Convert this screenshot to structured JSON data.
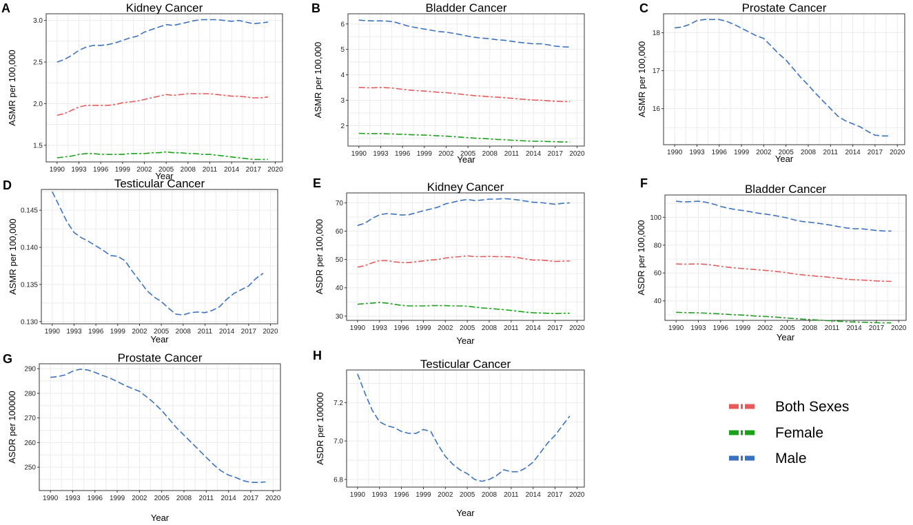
{
  "chart_data": [
    {
      "panel": "A",
      "type": "line",
      "title": "Kidney Cancer",
      "xlabel": "Year",
      "ylabel": "ASMR per 100,000",
      "xlim": [
        1988.5,
        2021
      ],
      "ylim": [
        1.3,
        3.08
      ],
      "yticks": [
        1.5,
        2.0,
        2.5,
        3.0
      ],
      "ytick_labels": [
        "1.5",
        "2.0",
        "2.5",
        "3.0"
      ],
      "xticks": [
        1990,
        1993,
        1996,
        1999,
        2002,
        2005,
        2008,
        2011,
        2014,
        2017,
        2020
      ],
      "x": [
        1990,
        1991,
        1992,
        1993,
        1994,
        1995,
        1996,
        1997,
        1998,
        1999,
        2000,
        2001,
        2002,
        2003,
        2004,
        2005,
        2006,
        2007,
        2008,
        2009,
        2010,
        2011,
        2012,
        2013,
        2014,
        2015,
        2016,
        2017,
        2018,
        2019
      ],
      "series": [
        {
          "name": "Male",
          "values": [
            2.5,
            2.53,
            2.58,
            2.64,
            2.68,
            2.7,
            2.7,
            2.71,
            2.73,
            2.76,
            2.79,
            2.81,
            2.86,
            2.89,
            2.92,
            2.95,
            2.94,
            2.96,
            2.98,
            3.0,
            3.01,
            3.01,
            3.01,
            3.0,
            2.99,
            3.0,
            2.98,
            2.96,
            2.97,
            2.98
          ]
        },
        {
          "name": "Both Sexes",
          "values": [
            1.86,
            1.88,
            1.92,
            1.96,
            1.98,
            1.98,
            1.98,
            1.98,
            1.99,
            2.01,
            2.02,
            2.03,
            2.05,
            2.07,
            2.09,
            2.11,
            2.1,
            2.11,
            2.12,
            2.12,
            2.12,
            2.12,
            2.11,
            2.1,
            2.09,
            2.09,
            2.08,
            2.07,
            2.07,
            2.08
          ]
        },
        {
          "name": "Female",
          "values": [
            1.35,
            1.36,
            1.37,
            1.39,
            1.4,
            1.4,
            1.39,
            1.39,
            1.39,
            1.39,
            1.4,
            1.4,
            1.4,
            1.41,
            1.41,
            1.42,
            1.41,
            1.41,
            1.4,
            1.4,
            1.39,
            1.39,
            1.38,
            1.37,
            1.36,
            1.35,
            1.34,
            1.33,
            1.33,
            1.33
          ]
        }
      ]
    },
    {
      "panel": "B",
      "type": "line",
      "title": "Bladder Cancer",
      "xlabel": "Year",
      "ylabel": "ASMR per 100,000",
      "xlim": [
        1988.5,
        2021
      ],
      "ylim": [
        1.2,
        6.4
      ],
      "yticks": [
        2,
        3,
        4,
        5,
        6
      ],
      "ytick_labels": [
        "2",
        "3",
        "4",
        "5",
        "6"
      ],
      "xticks": [
        1990,
        1993,
        1996,
        1999,
        2002,
        2005,
        2008,
        2011,
        2014,
        2017,
        2020
      ],
      "x": [
        1990,
        1991,
        1992,
        1993,
        1994,
        1995,
        1996,
        1997,
        1998,
        1999,
        2000,
        2001,
        2002,
        2003,
        2004,
        2005,
        2006,
        2007,
        2008,
        2009,
        2010,
        2011,
        2012,
        2013,
        2014,
        2015,
        2016,
        2017,
        2018,
        2019
      ],
      "series": [
        {
          "name": "Male",
          "values": [
            6.15,
            6.13,
            6.12,
            6.12,
            6.11,
            6.07,
            5.98,
            5.9,
            5.85,
            5.8,
            5.75,
            5.7,
            5.68,
            5.63,
            5.58,
            5.52,
            5.47,
            5.44,
            5.42,
            5.38,
            5.36,
            5.32,
            5.28,
            5.25,
            5.22,
            5.22,
            5.18,
            5.13,
            5.1,
            5.09
          ]
        },
        {
          "name": "Both Sexes",
          "values": [
            3.5,
            3.49,
            3.49,
            3.5,
            3.49,
            3.47,
            3.43,
            3.4,
            3.38,
            3.36,
            3.34,
            3.31,
            3.3,
            3.27,
            3.24,
            3.21,
            3.18,
            3.16,
            3.14,
            3.12,
            3.1,
            3.08,
            3.05,
            3.03,
            3.01,
            3.0,
            2.98,
            2.96,
            2.95,
            2.95
          ]
        },
        {
          "name": "Female",
          "values": [
            1.7,
            1.69,
            1.69,
            1.69,
            1.68,
            1.67,
            1.66,
            1.65,
            1.64,
            1.63,
            1.62,
            1.6,
            1.59,
            1.57,
            1.55,
            1.53,
            1.51,
            1.5,
            1.48,
            1.46,
            1.45,
            1.43,
            1.42,
            1.4,
            1.39,
            1.39,
            1.38,
            1.37,
            1.36,
            1.36
          ]
        }
      ]
    },
    {
      "panel": "C",
      "type": "line",
      "title": "Prostate Cancer",
      "xlabel": "Year",
      "ylabel": "ASMR per 100,000",
      "xlim": [
        1988.5,
        2021
      ],
      "ylim": [
        15.05,
        18.5
      ],
      "yticks": [
        16,
        17,
        18
      ],
      "ytick_labels": [
        "16",
        "17",
        "18"
      ],
      "xticks": [
        1990,
        1993,
        1996,
        1999,
        2002,
        2005,
        2008,
        2011,
        2014,
        2017,
        2020
      ],
      "x": [
        1990,
        1991,
        1992,
        1993,
        1994,
        1995,
        1996,
        1997,
        1998,
        1999,
        2000,
        2001,
        2002,
        2003,
        2004,
        2005,
        2006,
        2007,
        2008,
        2009,
        2010,
        2011,
        2012,
        2013,
        2014,
        2015,
        2016,
        2017,
        2018,
        2019
      ],
      "series": [
        {
          "name": "Male",
          "values": [
            18.13,
            18.15,
            18.22,
            18.32,
            18.35,
            18.35,
            18.35,
            18.3,
            18.22,
            18.12,
            18.02,
            17.92,
            17.85,
            17.65,
            17.45,
            17.28,
            17.05,
            16.82,
            16.62,
            16.4,
            16.2,
            16.0,
            15.8,
            15.68,
            15.6,
            15.52,
            15.4,
            15.3,
            15.28,
            15.28
          ]
        }
      ]
    },
    {
      "panel": "D",
      "type": "line",
      "title": "Testicular Cancer",
      "xlabel": "Year",
      "ylabel": "ASMR per 100,000",
      "xlim": [
        1988.5,
        2021
      ],
      "ylim": [
        0.1297,
        0.1478
      ],
      "yticks": [
        0.13,
        0.135,
        0.14,
        0.145
      ],
      "ytick_labels": [
        "0.130",
        "0.135",
        "0.140",
        "0.145"
      ],
      "xticks": [
        1990,
        1993,
        1996,
        1999,
        2002,
        2005,
        2008,
        2011,
        2014,
        2017,
        2020
      ],
      "x": [
        1990,
        1991,
        1992,
        1993,
        1994,
        1995,
        1996,
        1997,
        1998,
        1999,
        2000,
        2001,
        2002,
        2003,
        2004,
        2005,
        2006,
        2007,
        2008,
        2009,
        2010,
        2011,
        2012,
        2013,
        2014,
        2015,
        2016,
        2017,
        2018,
        2019
      ],
      "series": [
        {
          "name": "Male",
          "values": [
            0.1475,
            0.1455,
            0.1435,
            0.142,
            0.1413,
            0.1408,
            0.1402,
            0.1396,
            0.1389,
            0.1388,
            0.1382,
            0.1368,
            0.1355,
            0.1342,
            0.1333,
            0.1327,
            0.1318,
            0.131,
            0.1309,
            0.1312,
            0.1313,
            0.1312,
            0.1315,
            0.132,
            0.133,
            0.1338,
            0.1343,
            0.1348,
            0.1358,
            0.1365
          ]
        }
      ]
    },
    {
      "panel": "E",
      "type": "line",
      "title": "Kidney Cancer",
      "xlabel": "Year",
      "ylabel": "ASDR per 100,000",
      "xlim": [
        1988.5,
        2021
      ],
      "ylim": [
        28.5,
        73.5
      ],
      "yticks": [
        30,
        40,
        50,
        60,
        70
      ],
      "ytick_labels": [
        "30",
        "40",
        "50",
        "60",
        "70"
      ],
      "xticks": [
        1990,
        1993,
        1996,
        1999,
        2002,
        2005,
        2008,
        2011,
        2014,
        2017,
        2020
      ],
      "x": [
        1990,
        1991,
        1992,
        1993,
        1994,
        1995,
        1996,
        1997,
        1998,
        1999,
        2000,
        2001,
        2002,
        2003,
        2004,
        2005,
        2006,
        2007,
        2008,
        2009,
        2010,
        2011,
        2012,
        2013,
        2014,
        2015,
        2016,
        2017,
        2018,
        2019
      ],
      "series": [
        {
          "name": "Male",
          "values": [
            62.0,
            62.8,
            64.5,
            65.8,
            66.2,
            66.0,
            65.7,
            65.8,
            66.5,
            67.2,
            67.8,
            68.5,
            69.6,
            70.2,
            70.8,
            71.2,
            70.8,
            71.0,
            71.3,
            71.3,
            71.5,
            71.3,
            71.0,
            70.6,
            70.2,
            70.1,
            69.8,
            69.5,
            69.8,
            70.0
          ]
        },
        {
          "name": "Both Sexes",
          "values": [
            47.3,
            47.8,
            48.8,
            49.6,
            49.6,
            49.2,
            48.9,
            48.9,
            49.2,
            49.5,
            49.8,
            50.0,
            50.5,
            50.8,
            51.0,
            51.3,
            51.0,
            51.0,
            51.1,
            51.0,
            51.0,
            50.9,
            50.6,
            50.2,
            49.8,
            49.8,
            49.6,
            49.3,
            49.4,
            49.5
          ]
        },
        {
          "name": "Female",
          "values": [
            34.2,
            34.4,
            34.6,
            34.8,
            34.6,
            34.2,
            33.8,
            33.6,
            33.6,
            33.6,
            33.7,
            33.7,
            33.7,
            33.6,
            33.6,
            33.5,
            33.2,
            32.9,
            32.7,
            32.5,
            32.3,
            32.0,
            31.7,
            31.4,
            31.2,
            31.1,
            31.0,
            30.9,
            31.0,
            31.0
          ]
        }
      ]
    },
    {
      "panel": "F",
      "type": "line",
      "title": "Bladder Cancer",
      "xlabel": "Year",
      "ylabel": "ASDR per 100,000",
      "xlim": [
        1988.5,
        2021
      ],
      "ylim": [
        26,
        116
      ],
      "yticks": [
        40,
        60,
        80,
        100
      ],
      "ytick_labels": [
        "40",
        "60",
        "80",
        "100"
      ],
      "xticks": [
        1990,
        1993,
        1996,
        1999,
        2002,
        2005,
        2008,
        2011,
        2014,
        2017,
        2020
      ],
      "x": [
        1990,
        1991,
        1992,
        1993,
        1994,
        1995,
        1996,
        1997,
        1998,
        1999,
        2000,
        2001,
        2002,
        2003,
        2004,
        2005,
        2006,
        2007,
        2008,
        2009,
        2010,
        2011,
        2012,
        2013,
        2014,
        2015,
        2016,
        2017,
        2018,
        2019
      ],
      "series": [
        {
          "name": "Male",
          "values": [
            111.5,
            111.0,
            111.2,
            111.5,
            110.8,
            109.5,
            107.8,
            106.5,
            105.5,
            104.8,
            104.0,
            103.0,
            102.3,
            101.5,
            100.5,
            99.5,
            98.0,
            97.0,
            96.4,
            95.8,
            95.0,
            94.2,
            93.2,
            92.3,
            91.8,
            91.7,
            91.2,
            90.5,
            90.2,
            90.1
          ]
        },
        {
          "name": "Both Sexes",
          "values": [
            66.5,
            66.3,
            66.4,
            66.5,
            66.2,
            65.6,
            64.8,
            64.2,
            63.6,
            63.2,
            62.8,
            62.3,
            61.9,
            61.4,
            60.8,
            60.1,
            59.3,
            58.7,
            58.2,
            57.7,
            57.3,
            56.7,
            56.1,
            55.5,
            55.2,
            55.0,
            54.7,
            54.3,
            54.1,
            54.0
          ]
        },
        {
          "name": "Female",
          "values": [
            31.8,
            31.6,
            31.5,
            31.4,
            31.2,
            30.9,
            30.6,
            30.3,
            30.0,
            29.8,
            29.4,
            29.0,
            28.8,
            28.5,
            28.1,
            27.7,
            27.3,
            26.9,
            26.6,
            26.3,
            26.0,
            25.7,
            25.3,
            25.0,
            24.8,
            24.7,
            24.5,
            24.3,
            24.2,
            24.2
          ]
        }
      ]
    },
    {
      "panel": "G",
      "type": "line",
      "title": "Prostate Cancer",
      "xlabel": "Year",
      "ylabel": "ASDR per 100000",
      "xlim": [
        1988.5,
        2021
      ],
      "ylim": [
        240.5,
        292
      ],
      "yticks": [
        250,
        260,
        270,
        280,
        290
      ],
      "ytick_labels": [
        "250",
        "260",
        "270",
        "280",
        "290"
      ],
      "xticks": [
        1990,
        1993,
        1996,
        1999,
        2002,
        2005,
        2008,
        2011,
        2014,
        2017,
        2020
      ],
      "x": [
        1990,
        1991,
        1992,
        1993,
        1994,
        1995,
        1996,
        1997,
        1998,
        1999,
        2000,
        2001,
        2002,
        2003,
        2004,
        2005,
        2006,
        2007,
        2008,
        2009,
        2010,
        2011,
        2012,
        2013,
        2014,
        2015,
        2016,
        2017,
        2018,
        2019
      ],
      "series": [
        {
          "name": "Male",
          "values": [
            286.5,
            286.8,
            287.5,
            289.0,
            289.8,
            289.5,
            288.5,
            287.3,
            286.2,
            284.8,
            283.3,
            282.0,
            280.8,
            278.5,
            276.0,
            273.0,
            269.5,
            266.0,
            263.0,
            260.0,
            257.0,
            254.0,
            251.0,
            248.5,
            246.8,
            245.8,
            244.5,
            243.8,
            243.8,
            244.0
          ]
        }
      ]
    },
    {
      "panel": "H",
      "type": "line",
      "title": "Testicular Cancer",
      "xlabel": "Year",
      "ylabel": "ASDR per 100000",
      "xlim": [
        1988.5,
        2021
      ],
      "ylim": [
        6.76,
        7.37
      ],
      "yticks": [
        6.8,
        7.0,
        7.2
      ],
      "ytick_labels": [
        "6.8",
        "7.0",
        "7.2"
      ],
      "xticks": [
        1990,
        1993,
        1996,
        1999,
        2002,
        2005,
        2008,
        2011,
        2014,
        2017,
        2020
      ],
      "x": [
        1990,
        1991,
        1992,
        1993,
        1994,
        1995,
        1996,
        1997,
        1998,
        1999,
        2000,
        2001,
        2002,
        2003,
        2004,
        2005,
        2006,
        2007,
        2008,
        2009,
        2010,
        2011,
        2012,
        2013,
        2014,
        2015,
        2016,
        2017,
        2018,
        2019
      ],
      "series": [
        {
          "name": "Male",
          "values": [
            7.35,
            7.25,
            7.16,
            7.1,
            7.08,
            7.07,
            7.05,
            7.04,
            7.04,
            7.06,
            7.05,
            6.98,
            6.92,
            6.88,
            6.85,
            6.83,
            6.8,
            6.79,
            6.8,
            6.82,
            6.85,
            6.84,
            6.84,
            6.86,
            6.89,
            6.94,
            6.99,
            7.03,
            7.08,
            7.13
          ]
        }
      ]
    }
  ],
  "legend": {
    "position": "bottom-right",
    "items": [
      {
        "label": "Both Sexes",
        "color": "#e8595a"
      },
      {
        "label": "Female",
        "color": "#1aa21a"
      },
      {
        "label": "Male",
        "color": "#3a72c2"
      }
    ]
  },
  "colors": {
    "Both Sexes": "#e8595a",
    "Female": "#1aa21a",
    "Male": "#3a72c2",
    "grid": "#ebebeb"
  }
}
